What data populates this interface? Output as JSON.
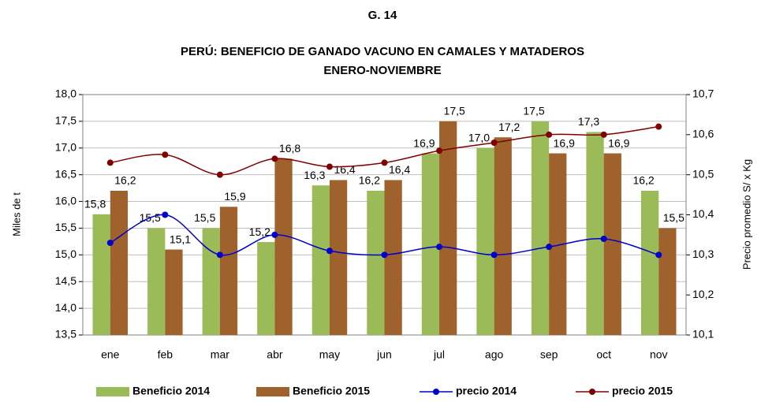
{
  "chart_data": {
    "type": "bar_line",
    "figure_label": "G. 14",
    "title": "PERÚ: BENEFICIO DE GANADO VACUNO EN CAMALES Y MATADEROS",
    "subtitle": "ENERO-NOVIEMBRE",
    "y_label": "Miles de t",
    "y2_label": "Precio promedio S/ x Kg",
    "categories": [
      "ene",
      "feb",
      "mar",
      "abr",
      "may",
      "jun",
      "jul",
      "ago",
      "sep",
      "oct",
      "nov"
    ],
    "series": [
      {
        "name": "Beneficio 2014",
        "color": "#9bbb59",
        "kind": "bar",
        "values": [
          15.76,
          15.5,
          15.5,
          15.24,
          16.3,
          16.2,
          16.9,
          17.0,
          17.5,
          17.3,
          16.2
        ],
        "value_labels": [
          "15,8",
          "15,5",
          "15,5",
          "15,2",
          "16,3",
          "16,2",
          "16,9",
          "17,0",
          "17,5",
          "17,3",
          "16,2"
        ]
      },
      {
        "name": "Beneficio 2015",
        "color": "#a0622d",
        "kind": "bar",
        "values": [
          16.2,
          15.1,
          15.9,
          16.8,
          16.4,
          16.4,
          17.5,
          17.2,
          16.9,
          16.9,
          15.5
        ],
        "value_labels": [
          "16,2",
          "15,1",
          "15,9",
          "16,8",
          "16,4",
          "16,4",
          "17,5",
          "17,2",
          "16,9",
          "16,9",
          "15,5"
        ]
      },
      {
        "name": "precio 2014",
        "color": "#0000cc",
        "kind": "line",
        "axis": "y2",
        "values": [
          10.33,
          10.4,
          10.3,
          10.35,
          10.31,
          10.3,
          10.32,
          10.3,
          10.32,
          10.34,
          10.3
        ]
      },
      {
        "name": "precio 2015",
        "color": "#800000",
        "kind": "line",
        "axis": "y2",
        "values": [
          10.53,
          10.55,
          10.5,
          10.54,
          10.52,
          10.53,
          10.56,
          10.58,
          10.6,
          10.6,
          10.62
        ]
      }
    ],
    "ylim": [
      13.5,
      18.0
    ],
    "yticks": [
      {
        "value": 13.5,
        "label": "13,5"
      },
      {
        "value": 14.0,
        "label": "14,0"
      },
      {
        "value": 14.5,
        "label": "14,5"
      },
      {
        "value": 15.0,
        "label": "15,0"
      },
      {
        "value": 15.5,
        "label": "15,5"
      },
      {
        "value": 16.0,
        "label": "16,0"
      },
      {
        "value": 16.5,
        "label": "16,5"
      },
      {
        "value": 17.0,
        "label": "17,0"
      },
      {
        "value": 17.5,
        "label": "17,5"
      },
      {
        "value": 18.0,
        "label": "18,0"
      }
    ],
    "y2lim": [
      10.1,
      10.7
    ],
    "y2ticks": [
      {
        "value": 10.1,
        "label": "10,1"
      },
      {
        "value": 10.2,
        "label": "10,2"
      },
      {
        "value": 10.3,
        "label": "10,3"
      },
      {
        "value": 10.4,
        "label": "10,4"
      },
      {
        "value": 10.5,
        "label": "10,5"
      },
      {
        "value": 10.6,
        "label": "10,6"
      },
      {
        "value": 10.7,
        "label": "10,7"
      }
    ],
    "grid": true,
    "legend": "bottom"
  }
}
